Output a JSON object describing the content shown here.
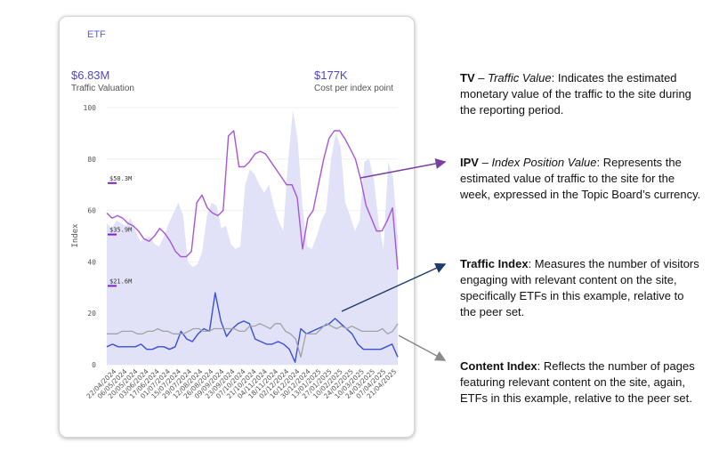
{
  "card": {
    "tab_label": "ETF",
    "metric_left": {
      "value": "$6.83M",
      "label": "Traffic Valuation"
    },
    "metric_right": {
      "value": "$177K",
      "label": "Cost per index point"
    }
  },
  "chart_data": {
    "type": "line",
    "ylabel": "Index",
    "ylim": [
      0,
      100
    ],
    "yticks": [
      0,
      20,
      40,
      60,
      80,
      100
    ],
    "x_tick_labels": [
      "22/04/2024",
      "06/05/2024",
      "20/05/2024",
      "03/06/2024",
      "17/06/2024",
      "01/07/2024",
      "15/07/2024",
      "29/07/2024",
      "12/08/2024",
      "26/08/2024",
      "09/09/2024",
      "23/09/2024",
      "07/10/2024",
      "21/10/2024",
      "04/11/2024",
      "18/11/2024",
      "02/12/2024",
      "16/12/2024",
      "30/12/2024",
      "13/01/2025",
      "27/01/2025",
      "10/02/2025",
      "24/02/2025",
      "10/03/2025",
      "24/03/2025",
      "07/04/2025",
      "21/04/2025"
    ],
    "value_markers": [
      {
        "label": "$50.3M",
        "y": 71
      },
      {
        "label": "$35.9M",
        "y": 51
      },
      {
        "label": "$21.6M",
        "y": 31
      }
    ],
    "series": [
      {
        "role": "area",
        "color": "#dcdcf7",
        "values": [
          55,
          53,
          56,
          55,
          54,
          57,
          52,
          48,
          49,
          50,
          47,
          46,
          50,
          55,
          59,
          63,
          58,
          40,
          38,
          39,
          44,
          58,
          63,
          62,
          53,
          54,
          47,
          45,
          46,
          70,
          76,
          74,
          70,
          67,
          70,
          62,
          56,
          52,
          79,
          99,
          88,
          62,
          46,
          45,
          50,
          56,
          60,
          80,
          90,
          85,
          63,
          58,
          52,
          56,
          79,
          80,
          72,
          55,
          45,
          79,
          73,
          50
        ]
      },
      {
        "role": "ipv",
        "color": "#a855d8",
        "values": [
          59,
          57,
          58,
          57,
          55,
          54,
          52,
          49,
          48,
          50,
          53,
          51,
          48,
          44,
          42,
          42,
          44,
          63,
          66,
          61,
          59,
          58,
          60,
          89,
          91,
          77,
          77,
          79,
          82,
          83,
          82,
          79,
          76,
          73,
          70,
          70,
          65,
          45,
          57,
          60,
          70,
          80,
          88,
          91,
          91,
          88,
          84,
          80,
          72,
          62,
          57,
          52,
          52,
          56,
          61,
          37
        ]
      },
      {
        "role": "traffic_index",
        "color": "#3b4fd8",
        "values": [
          7,
          8,
          7,
          7,
          7,
          7,
          8,
          6,
          6,
          7,
          7,
          6,
          7,
          13,
          10,
          9,
          12,
          14,
          13,
          28,
          17,
          11,
          14,
          16,
          17,
          16,
          10,
          9,
          8,
          8,
          9,
          8,
          6,
          1,
          14,
          12,
          13,
          14,
          15,
          16,
          18,
          16,
          14,
          12,
          8,
          6,
          6,
          6,
          6,
          7,
          8,
          3
        ]
      },
      {
        "role": "content_index",
        "color": "#a3a3a3",
        "values": [
          12,
          12,
          12,
          13,
          13,
          13,
          12,
          12,
          13,
          13,
          14,
          13,
          13,
          12,
          12,
          12,
          13,
          14,
          14,
          13,
          13,
          14,
          14,
          14,
          14,
          14,
          13,
          13,
          15,
          15,
          16,
          15,
          14,
          16,
          16,
          13,
          12,
          10,
          3,
          12,
          12,
          12,
          14,
          16,
          15,
          14,
          15,
          14,
          15,
          14,
          13,
          13,
          13,
          13,
          14,
          12,
          13,
          16
        ]
      }
    ]
  },
  "annotations": [
    {
      "term": "TV",
      "term_full": "Traffic Value",
      "dash": " – ",
      "text": ": Indicates the estimated monetary value of the traffic to the site during the reporting period."
    },
    {
      "term": "IPV",
      "term_full": "Index Position Value",
      "dash": " – ",
      "text": ": Represents the estimated value of traffic to the site for the week, expressed in the Topic Board’s currency."
    },
    {
      "term": "Traffic Index",
      "text": ": Measures the number of visitors engaging with relevant content on the site, specifically ETFs in this example, relative to the peer set."
    },
    {
      "term": "Content Index",
      "text": ": Reflects the number of pages featuring relevant content on the site, again, ETFs in this example, relative to the peer set."
    }
  ],
  "colors": {
    "accent": "#5b5bd6",
    "ipv_arrow": "#7b3fa0",
    "traffic_arrow": "#1f3b6b",
    "content_arrow": "#8a8a8a"
  }
}
